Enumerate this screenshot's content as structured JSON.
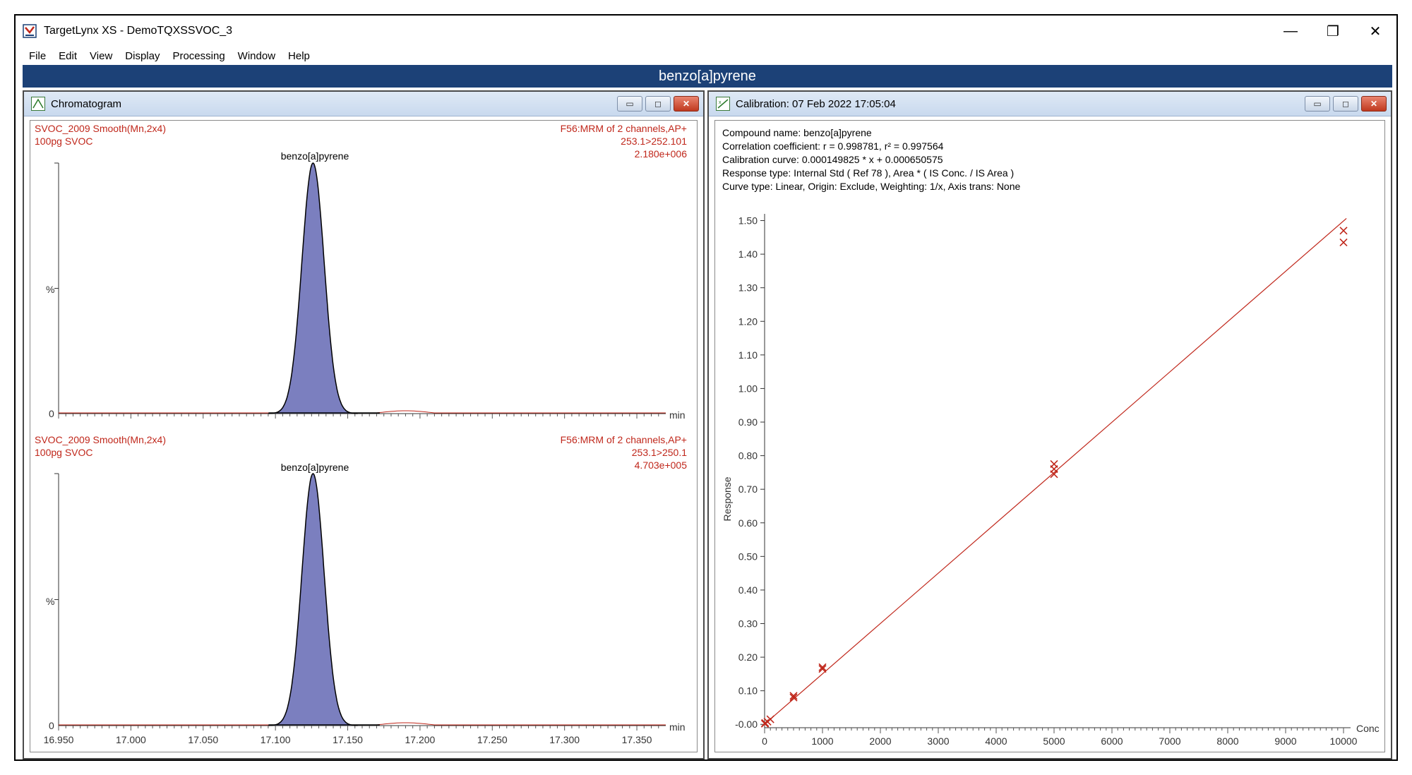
{
  "app": {
    "title": "TargetLynx XS - DemoTQXSSVOC_3"
  },
  "window_controls": {
    "minimize": "—",
    "restore": "❐",
    "close": "✕"
  },
  "menu": [
    "File",
    "Edit",
    "View",
    "Display",
    "Processing",
    "Window",
    "Help"
  ],
  "banner": {
    "compound": "benzo[a]pyrene"
  },
  "chromatogram": {
    "title": "Chromatogram",
    "traces": [
      {
        "sample": "SVOC_2009 Smooth(Mn,2x4)",
        "level": "100pg SVOC",
        "function": "F56:MRM of 2 channels,AP+",
        "transition": "253.1>252.101",
        "intensity": "2.180e+006",
        "peak_label": "benzo[a]pyrene",
        "y_pct": "%",
        "y_zero": "0",
        "x_unit": "min"
      },
      {
        "sample": "SVOC_2009 Smooth(Mn,2x4)",
        "level": "100pg SVOC",
        "function": "F56:MRM of 2 channels,AP+",
        "transition": "253.1>250.1",
        "intensity": "4.703e+005",
        "peak_label": "benzo[a]pyrene",
        "y_pct": "%",
        "y_zero": "0",
        "x_unit": "min"
      }
    ],
    "x_ticks": [
      "16.950",
      "17.000",
      "17.050",
      "17.100",
      "17.150",
      "17.200",
      "17.250",
      "17.300",
      "17.350"
    ]
  },
  "calibration": {
    "title": "Calibration: 07 Feb 2022 17:05:04",
    "info": [
      "Compound name: benzo[a]pyrene",
      "Correlation coefficient: r = 0.998781, r² = 0.997564",
      "Calibration curve: 0.000149825 * x + 0.000650575",
      "Response type: Internal Std ( Ref 78 ), Area * ( IS Conc. / IS Area )",
      "Curve type: Linear, Origin: Exclude, Weighting: 1/x, Axis trans: None"
    ]
  },
  "chart_data": [
    {
      "type": "line",
      "title": "SVOC_2009 Smooth(Mn,2x4) 253.1>252.101",
      "xlabel": "min",
      "ylabel": "%",
      "xlim": [
        16.95,
        17.37
      ],
      "ylim": [
        0,
        100
      ],
      "series": [
        {
          "name": "benzo[a]pyrene",
          "peak_apex_min": 17.126,
          "peak_width_min": 0.02
        }
      ]
    },
    {
      "type": "line",
      "title": "SVOC_2009 Smooth(Mn,2x4) 253.1>250.1",
      "xlabel": "min",
      "ylabel": "%",
      "xlim": [
        16.95,
        17.37
      ],
      "ylim": [
        0,
        100
      ],
      "series": [
        {
          "name": "benzo[a]pyrene",
          "peak_apex_min": 17.126,
          "peak_width_min": 0.02
        }
      ]
    },
    {
      "type": "scatter",
      "title": "Calibration",
      "xlabel": "Conc",
      "ylabel": "Response",
      "xlim": [
        0,
        10000
      ],
      "ylim": [
        -0.01,
        1.52
      ],
      "x_ticks": [
        0,
        1000,
        2000,
        3000,
        4000,
        5000,
        6000,
        7000,
        8000,
        9000,
        10000
      ],
      "y_ticks": [
        "-0.00",
        "0.10",
        "0.20",
        "0.30",
        "0.40",
        "0.50",
        "0.60",
        "0.70",
        "0.80",
        "0.90",
        "1.00",
        "1.10",
        "1.20",
        "1.30",
        "1.40",
        "1.50"
      ],
      "points": [
        [
          5,
          0.002
        ],
        [
          10,
          0.004
        ],
        [
          50,
          0.008
        ],
        [
          100,
          0.015
        ],
        [
          500,
          0.08
        ],
        [
          500,
          0.085
        ],
        [
          1000,
          0.165
        ],
        [
          1000,
          0.17
        ],
        [
          5000,
          0.745
        ],
        [
          5000,
          0.76
        ],
        [
          5000,
          0.775
        ],
        [
          10000,
          1.435
        ],
        [
          10000,
          1.47
        ]
      ],
      "fit": {
        "slope": 0.000149825,
        "intercept": 0.000650575
      }
    }
  ]
}
